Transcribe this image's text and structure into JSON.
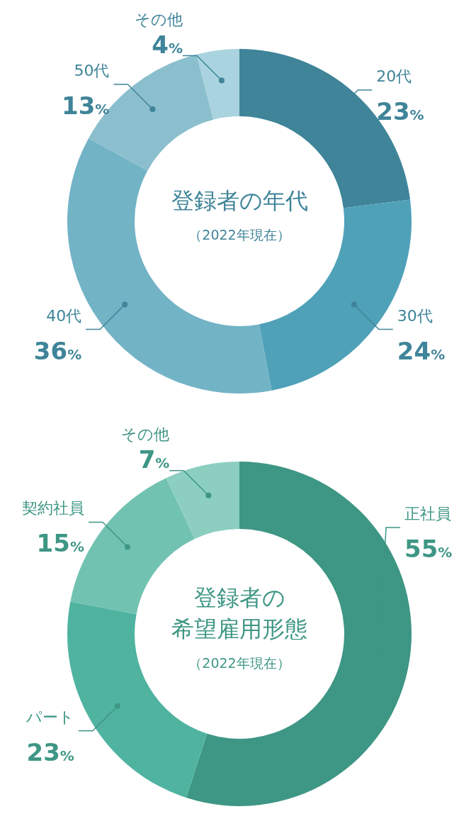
{
  "chart_data": [
    {
      "type": "donut",
      "title": "登録者の年代",
      "subtitle": "（2022年現在）",
      "categories": [
        "20代",
        "30代",
        "40代",
        "50代",
        "その他"
      ],
      "values": [
        23,
        24,
        36,
        13,
        4
      ],
      "value_labels": [
        "23%",
        "24%",
        "36%",
        "13%",
        "4%"
      ],
      "colors": [
        "#3f8499",
        "#4fa1b8",
        "#72b3c6",
        "#8bbfcd",
        "#a9d3de"
      ]
    },
    {
      "type": "donut",
      "title": "登録者の希望雇用形態",
      "subtitle": "（2022年現在）",
      "categories": [
        "正社員",
        "パート",
        "契約社員",
        "その他"
      ],
      "values": [
        55,
        23,
        15,
        7
      ],
      "value_labels": [
        "55%",
        "23%",
        "15%",
        "7%"
      ],
      "colors": [
        "#3e9684",
        "#4fb3a0",
        "#72c2b2",
        "#8ccfc1"
      ]
    }
  ]
}
